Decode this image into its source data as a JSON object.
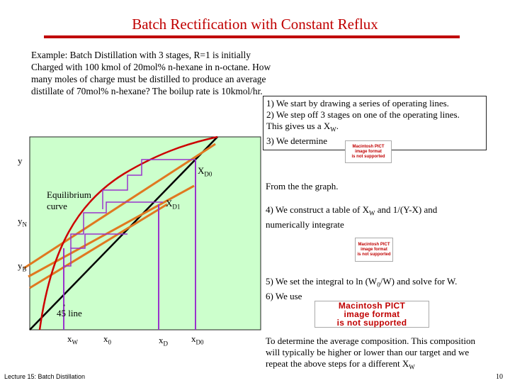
{
  "title": "Batch Rectification with Constant Reflux",
  "problem_text": "Example: Batch Distillation with 3 stages, R=1 is initially Charged with 100 kmol of 20mol% n-hexane in n-octane. How many moles of charge must be distilled to produce an average distillate of 70mol% n-hexane? The boilup rate is 10kmol/hr.",
  "steps_box": {
    "line1": "1) We start by drawing a series of operating lines.",
    "line2": "2) We step off 3 stages on one of the operating lines.",
    "line3_pre": "This gives us a X",
    "line3_sub": "W",
    "line3_post": ".",
    "line4": "3) We determine"
  },
  "from_graph": "From the the graph.",
  "step4": {
    "pre": "4) We construct a table of X",
    "sub": "W",
    "post": " and 1/(Y-X) and",
    "line2": "numerically integrate"
  },
  "step5": {
    "line1_pre": "5) We set the integral to ln (W",
    "line1_sub": "0",
    "line1_post": "/W) and solve for W.",
    "line2": "6) We use"
  },
  "final_text": {
    "line1": "To determine the average composition. This composition",
    "line2": "will typically be higher or lower than our target and we",
    "line3_pre": "repeat the above steps for a different X",
    "line3_sub": "W"
  },
  "pict_placeholder": {
    "line1": "Macintosh PICT",
    "line2": "image format",
    "line3": "is not supported"
  },
  "pict_placeholder_large": {
    "line1": "Macintosh PICT",
    "line2": "image format",
    "line3": "is not supported"
  },
  "diagram_labels": {
    "y_axis": "y",
    "xD0_top": {
      "main": "X",
      "sub": "D0"
    },
    "equilibrium_curve": "Equilibrium curve",
    "xD1": {
      "main": "X",
      "sub": "D1"
    },
    "yN": {
      "main": "y",
      "sub": "N"
    },
    "yB": {
      "main": "y",
      "sub": "B"
    },
    "line_45": "45 line",
    "degree_mark": "˚",
    "xW": {
      "main": "x",
      "sub": "W"
    },
    "x0": {
      "main": "x",
      "sub": "0"
    },
    "xD": {
      "main": "x",
      "sub": "D"
    },
    "xD0_bottom": {
      "main": "x",
      "sub": "D0"
    }
  },
  "colors": {
    "title": "#c00000",
    "plot_background": "#ccffcc",
    "equilibrium_curve": "#cc0000",
    "diagonal": "#000000",
    "operating_lines": "#e07820",
    "staircase": "#9933cc"
  },
  "footer": "Lecture 15: Batch Distillation",
  "page_number": "10"
}
